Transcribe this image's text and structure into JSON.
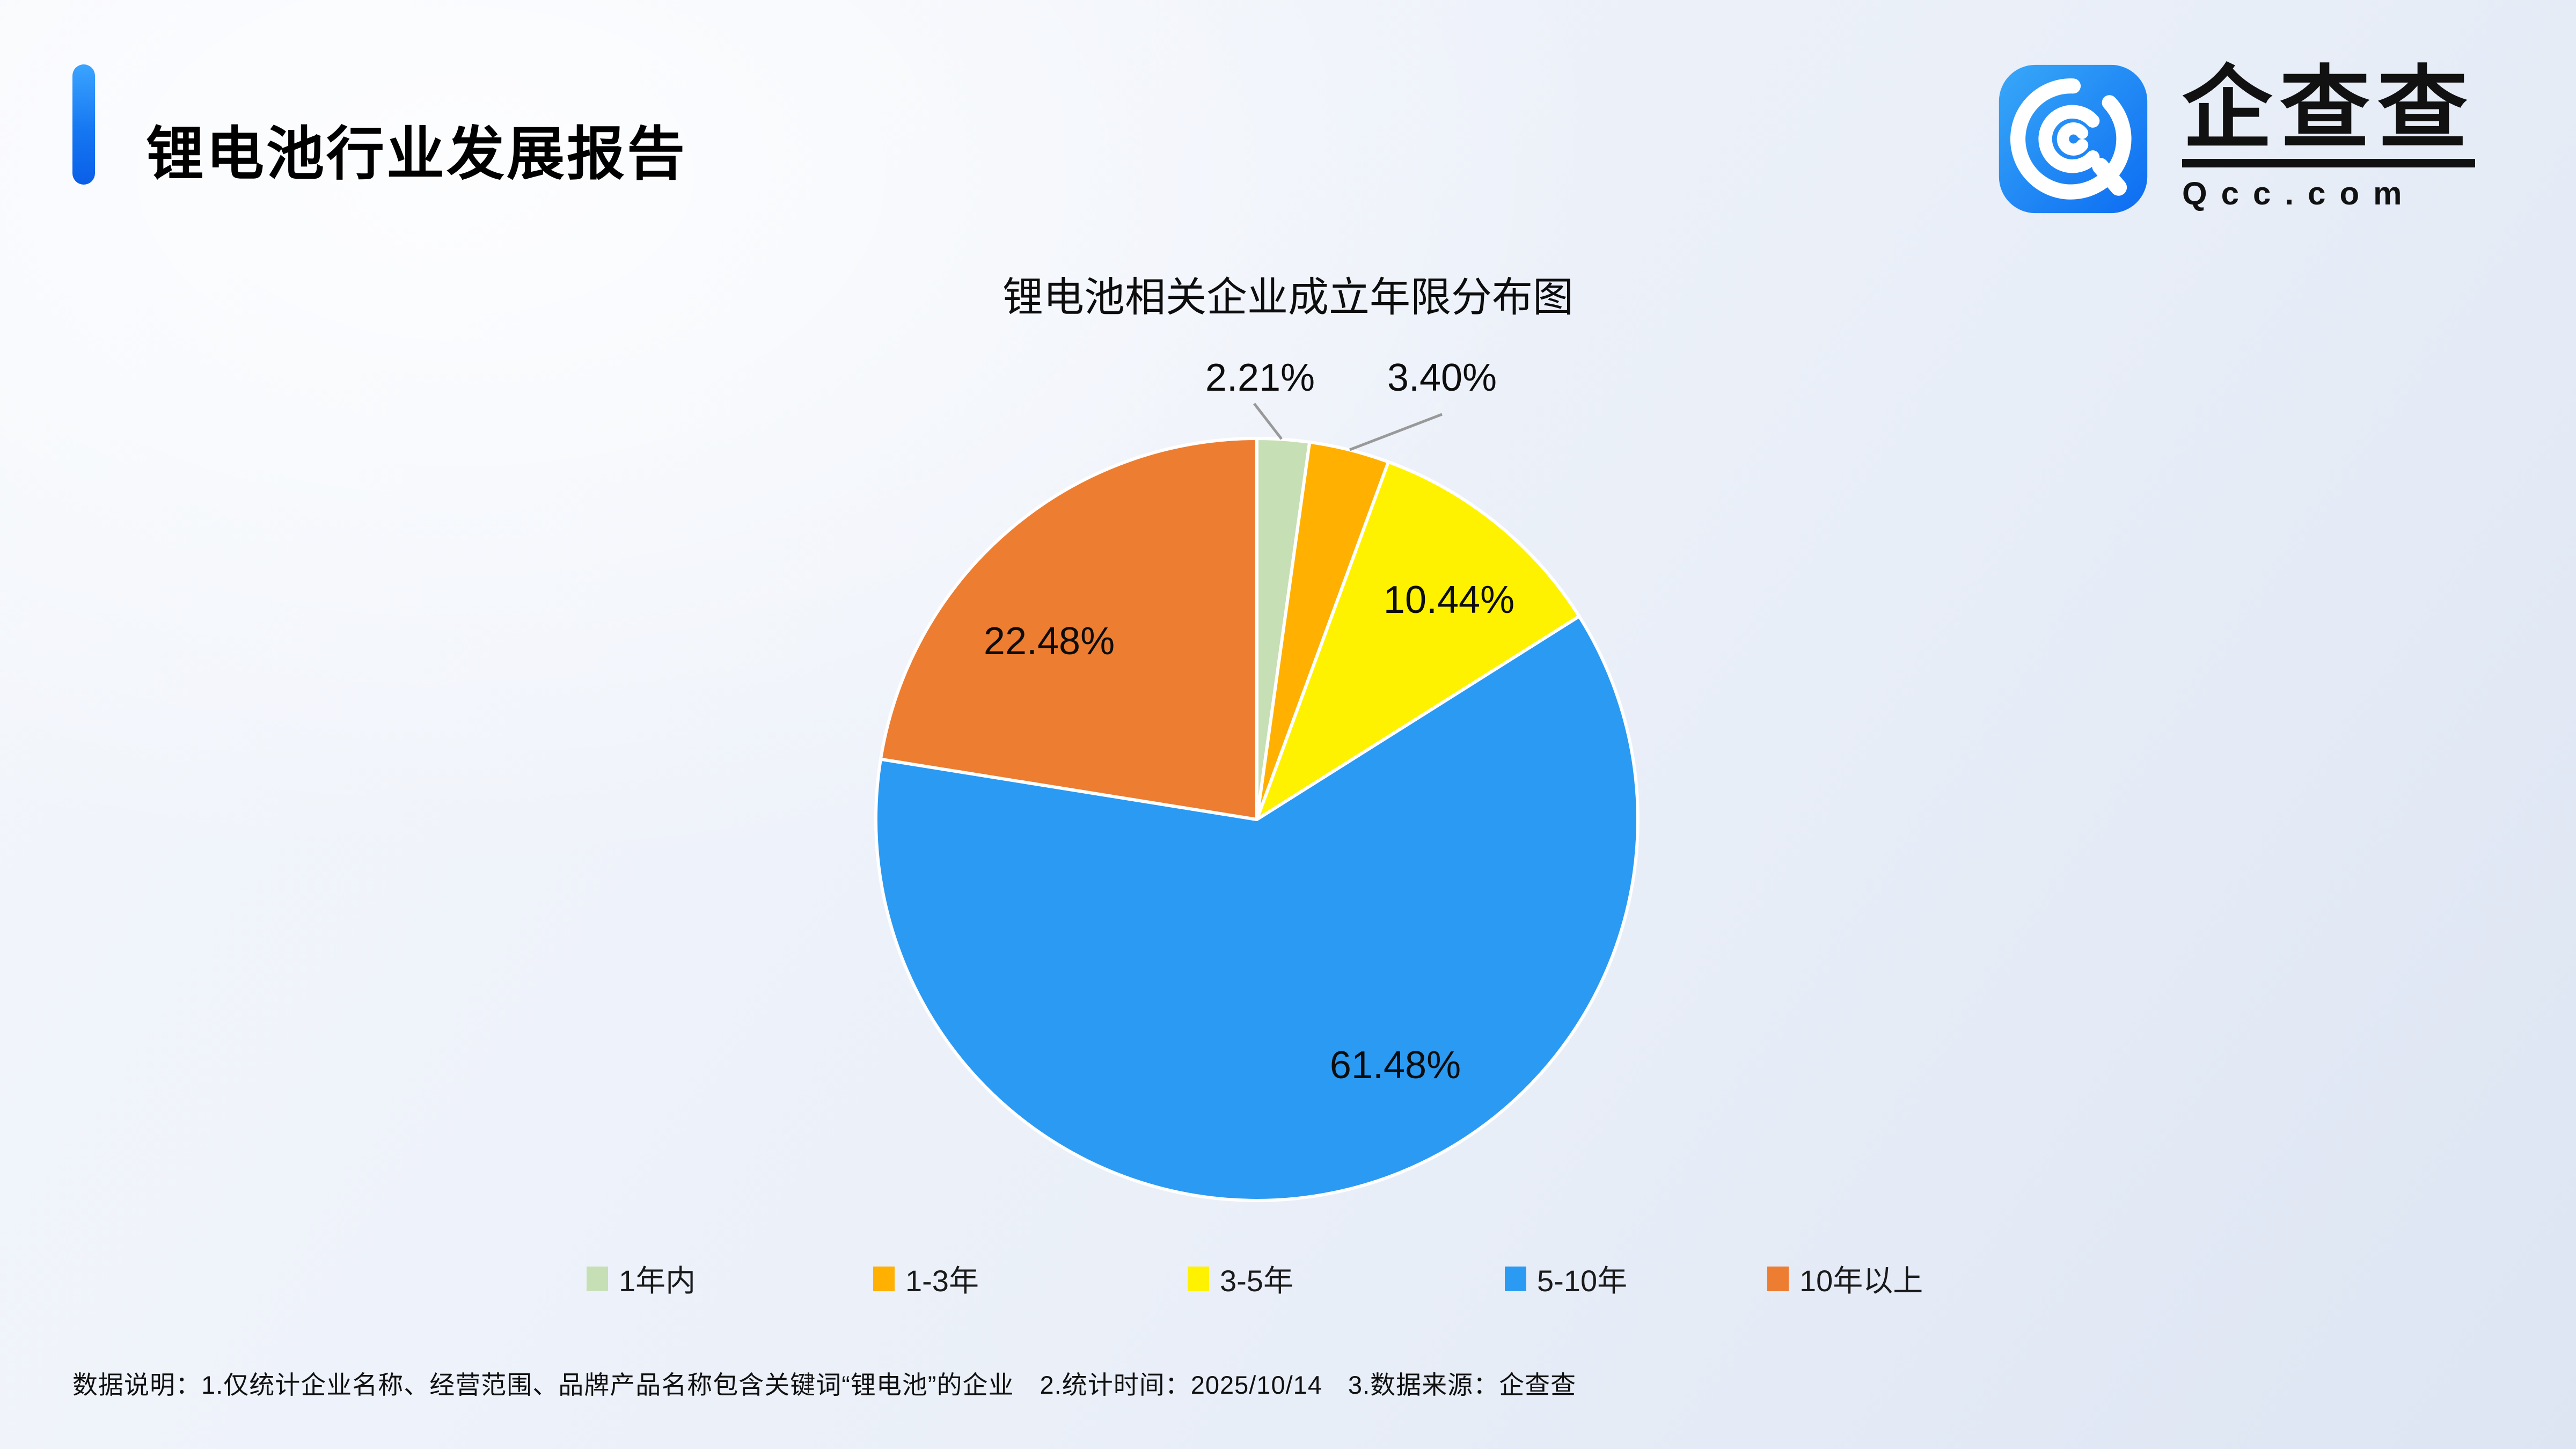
{
  "page": {
    "title": "锂电池行业发展报告",
    "footer": "数据说明：1.仅统计企业名称、经营范围、品牌产品名称包含关键词“锂电池”的企业　2.统计时间：2025/10/14　3.数据来源：企查查"
  },
  "logo": {
    "brand_name": "企查查",
    "domain": "Qcc.com",
    "icon": "qcc-spiral-q-icon",
    "icon_color_top": "#38a8f8",
    "icon_color_bottom": "#0c6cf2"
  },
  "chart_data": {
    "type": "pie",
    "title": "锂电池相关企业成立年限分布图",
    "unit": "%",
    "start_angle": "12-oclock",
    "direction": "clockwise",
    "legend_position": "bottom",
    "label_line_color": "#999999",
    "series": [
      {
        "label": "1年内",
        "value": 2.21,
        "display": "2.21%",
        "color": "#c6dfb5"
      },
      {
        "label": "1-3年",
        "value": 3.4,
        "display": "3.40%",
        "color": "#ffb000"
      },
      {
        "label": "3-5年",
        "value": 10.44,
        "display": "10.44%",
        "color": "#fff200"
      },
      {
        "label": "5-10年",
        "value": 61.48,
        "display": "61.48%",
        "color": "#2b9af2"
      },
      {
        "label": "10年以上",
        "value": 22.48,
        "display": "22.48%",
        "color": "#ed7d31"
      }
    ]
  }
}
